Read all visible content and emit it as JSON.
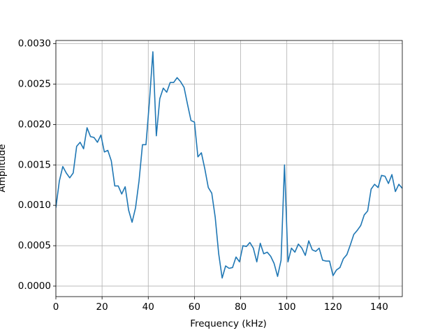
{
  "chart_data": {
    "type": "line",
    "xlabel": "Frequency (kHz)",
    "ylabel": "Amplitude",
    "color": "#1f77b4",
    "grid": true,
    "xlim": [
      0,
      150
    ],
    "xticks": [
      0,
      20,
      40,
      60,
      80,
      100,
      120,
      140
    ],
    "ylim": [
      -0.00013,
      0.00304
    ],
    "yticks": [
      {
        "value": 0,
        "label": "0.0000"
      },
      {
        "value": 0.0005,
        "label": "0.0005"
      },
      {
        "value": 0.001,
        "label": "0.0010"
      },
      {
        "value": 0.0015,
        "label": "0.0015"
      },
      {
        "value": 0.002,
        "label": "0.0020"
      },
      {
        "value": 0.0025,
        "label": "0.0025"
      },
      {
        "value": 0.003,
        "label": "0.0030"
      }
    ],
    "x": [
      0,
      1.5,
      3,
      4.5,
      6,
      7.5,
      9,
      10.5,
      12,
      13.5,
      15,
      16.5,
      18,
      19.5,
      21,
      22.5,
      24,
      25.5,
      27,
      28.5,
      30,
      31.5,
      33,
      34.5,
      36,
      37.5,
      39,
      40.5,
      42,
      43.5,
      45,
      46.5,
      48,
      49.5,
      51,
      52.5,
      54,
      55.5,
      57,
      58.5,
      60,
      61.5,
      63,
      64.5,
      66,
      67.5,
      69,
      70.5,
      72,
      73.5,
      75,
      76.5,
      78,
      79.5,
      81,
      82.5,
      84,
      85.5,
      87,
      88.5,
      90,
      91.5,
      93,
      94.5,
      96,
      97.5,
      99,
      100.5,
      102,
      103.5,
      105,
      106.5,
      108,
      109.5,
      111,
      112.5,
      114,
      115.5,
      117,
      118.5,
      120,
      121.5,
      123,
      124.5,
      126,
      127.5,
      129,
      130.5,
      132,
      133.5,
      135,
      136.5,
      138,
      139.5,
      141,
      142.5,
      144,
      145.5,
      147,
      148.5,
      150
    ],
    "values": [
      0.00097,
      0.0013,
      0.00148,
      0.0014,
      0.00134,
      0.0014,
      0.00173,
      0.00178,
      0.0017,
      0.00196,
      0.00185,
      0.00184,
      0.00178,
      0.00187,
      0.00166,
      0.00168,
      0.00155,
      0.00124,
      0.00124,
      0.00114,
      0.00123,
      0.00094,
      0.00079,
      0.00097,
      0.0013,
      0.00175,
      0.00175,
      0.00228,
      0.0029,
      0.00186,
      0.00232,
      0.00245,
      0.0024,
      0.00252,
      0.00252,
      0.00258,
      0.00253,
      0.00246,
      0.00225,
      0.00205,
      0.00203,
      0.0016,
      0.00165,
      0.00145,
      0.00122,
      0.00115,
      0.00085,
      0.0004,
      0.0001,
      0.00025,
      0.00022,
      0.00023,
      0.00036,
      0.0003,
      0.0005,
      0.00049,
      0.00054,
      0.00047,
      0.0003,
      0.00053,
      0.0004,
      0.00042,
      0.00037,
      0.00028,
      0.00012,
      0.00032,
      0.0015,
      0.0003,
      0.00047,
      0.00042,
      0.00052,
      0.00047,
      0.00038,
      0.00056,
      0.00045,
      0.00043,
      0.00047,
      0.00032,
      0.00031,
      0.00031,
      0.00013,
      0.0002,
      0.00023,
      0.00034,
      0.00039,
      0.00051,
      0.00064,
      0.00069,
      0.00075,
      0.00088,
      0.00093,
      0.0012,
      0.00126,
      0.00122,
      0.00137,
      0.00136,
      0.00127,
      0.00138,
      0.00117,
      0.00126,
      0.00121
    ]
  }
}
